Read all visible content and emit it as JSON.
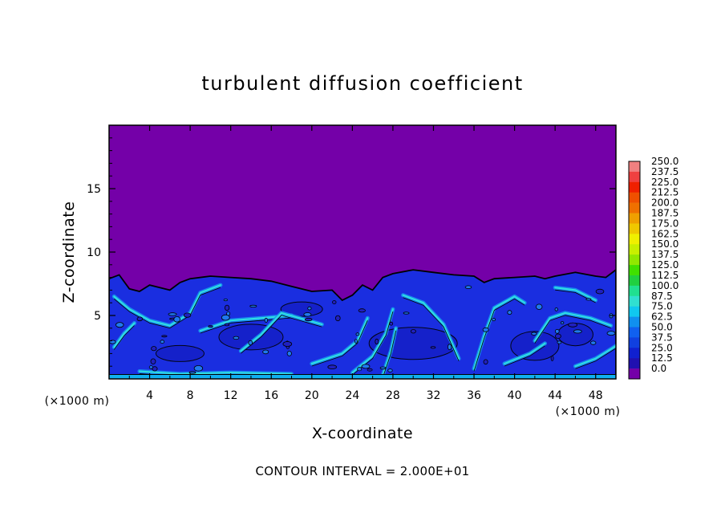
{
  "chart_data": {
    "type": "heatmap",
    "title": "turbulent diffusion coefficient",
    "xlabel": "X-coordinate",
    "ylabel": "Z-coordinate",
    "x_unit": "(×1000 m)",
    "y_unit": "(×1000 m)",
    "xlim": [
      0,
      50
    ],
    "ylim": [
      0,
      20
    ],
    "x_ticks": [
      "4",
      "8",
      "12",
      "16",
      "20",
      "24",
      "28",
      "32",
      "36",
      "40",
      "44",
      "48"
    ],
    "y_ticks": [
      "5",
      "10",
      "15"
    ],
    "contour_note": "CONTOUR INTERVAL = 2.000E+01",
    "colorbar": {
      "labels": [
        "250.0",
        "237.5",
        "225.0",
        "212.5",
        "200.0",
        "187.5",
        "175.0",
        "162.5",
        "150.0",
        "137.5",
        "125.0",
        "112.5",
        "100.0",
        "87.5",
        "75.0",
        "62.5",
        "50.0",
        "37.5",
        "25.0",
        "12.5",
        "0.0"
      ],
      "colors": [
        "#f08080",
        "#f04040",
        "#f02000",
        "#f05000",
        "#f07000",
        "#f0a000",
        "#f0c800",
        "#f0f000",
        "#c8f000",
        "#90e800",
        "#40e000",
        "#20d040",
        "#20e090",
        "#30e0d0",
        "#10c8f0",
        "#1090f0",
        "#1060f0",
        "#1040e0",
        "#1020d0",
        "#2010b0",
        "#7400a8"
      ]
    },
    "background_value_color": "#7400a8",
    "turbulent_layer_top": [
      [
        0,
        7.9
      ],
      [
        1,
        8.2
      ],
      [
        2,
        7.1
      ],
      [
        3,
        6.9
      ],
      [
        4,
        7.4
      ],
      [
        5,
        7.2
      ],
      [
        6,
        7.0
      ],
      [
        7,
        7.6
      ],
      [
        8,
        7.9
      ],
      [
        10,
        8.1
      ],
      [
        12,
        8.0
      ],
      [
        14,
        7.9
      ],
      [
        16,
        7.7
      ],
      [
        18,
        7.3
      ],
      [
        20,
        6.9
      ],
      [
        22,
        7.0
      ],
      [
        23,
        6.2
      ],
      [
        24,
        6.6
      ],
      [
        25,
        7.4
      ],
      [
        26,
        7.0
      ],
      [
        27,
        8.0
      ],
      [
        28,
        8.3
      ],
      [
        30,
        8.6
      ],
      [
        32,
        8.4
      ],
      [
        34,
        8.2
      ],
      [
        36,
        8.1
      ],
      [
        37,
        7.6
      ],
      [
        38,
        7.9
      ],
      [
        40,
        8.0
      ],
      [
        42,
        8.1
      ],
      [
        43,
        7.9
      ],
      [
        44,
        8.1
      ],
      [
        46,
        8.4
      ],
      [
        48,
        8.1
      ],
      [
        49,
        8.0
      ],
      [
        50,
        8.6
      ]
    ]
  }
}
